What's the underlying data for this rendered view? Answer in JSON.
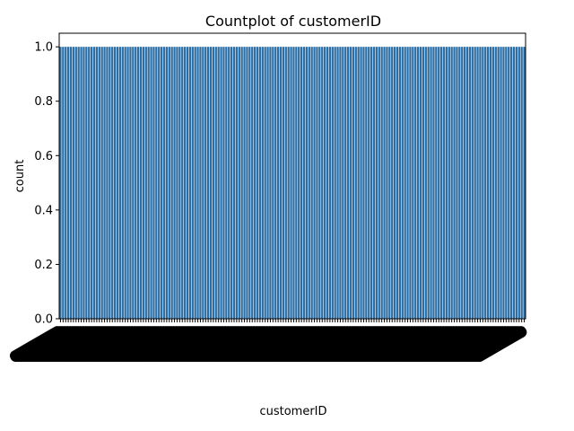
{
  "chart_data": {
    "type": "bar",
    "title": "Countplot of customerID",
    "xlabel": "customerID",
    "ylabel": "count",
    "ylim": [
      0,
      1.05
    ],
    "y_ticks": [
      "0.0",
      "0.2",
      "0.4",
      "0.6",
      "0.8",
      "1.0"
    ],
    "y_tick_values": [
      0,
      0.2,
      0.4,
      0.6,
      0.8,
      1.0
    ],
    "bar_color": "#2c6fa6",
    "n_categories": 180,
    "categories": [],
    "values_all_equal": 1,
    "grid": false,
    "legend": "none"
  }
}
